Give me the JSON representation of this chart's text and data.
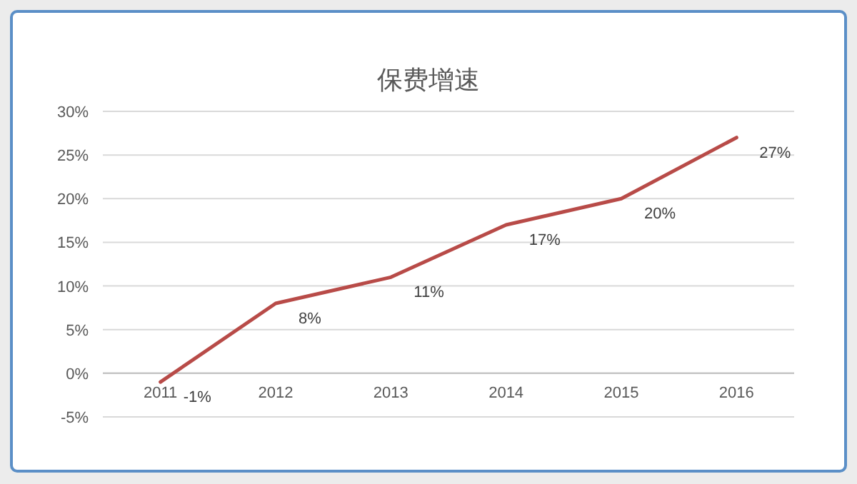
{
  "chart_data": {
    "type": "line",
    "title": "保费增速",
    "categories": [
      "2011",
      "2012",
      "2013",
      "2014",
      "2015",
      "2016"
    ],
    "series": [
      {
        "color": "#b84b48",
        "values": [
          -1,
          8,
          11,
          17,
          20,
          27
        ],
        "value_labels": [
          "-1%",
          "8%",
          "11%",
          "17%",
          "20%",
          "27%"
        ]
      }
    ],
    "ylim": [
      -5,
      30
    ],
    "yticks": [
      {
        "value": -5,
        "label": "-5%"
      },
      {
        "value": 0,
        "label": "0%"
      },
      {
        "value": 5,
        "label": "5%"
      },
      {
        "value": 10,
        "label": "10%"
      },
      {
        "value": 15,
        "label": "15%"
      },
      {
        "value": 20,
        "label": "20%"
      },
      {
        "value": 25,
        "label": "25%"
      },
      {
        "value": 30,
        "label": "30%"
      }
    ],
    "grid": "y"
  }
}
